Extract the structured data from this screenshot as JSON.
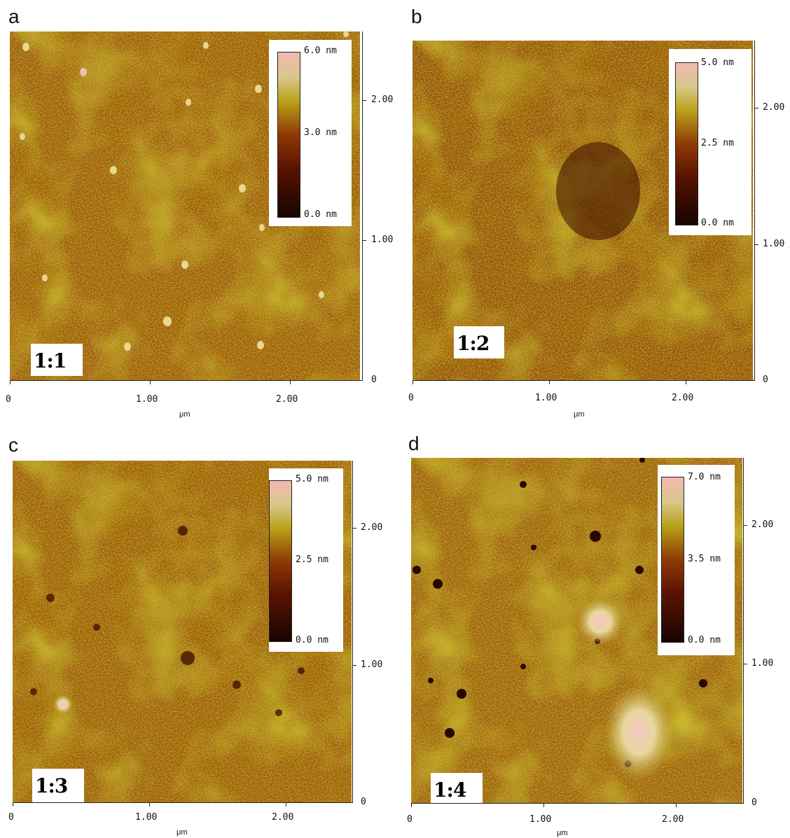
{
  "colors": {
    "low": "#1c0600",
    "mid": "#8a2e00",
    "olive": "#a89614",
    "high": "#f0b8b0"
  },
  "panels": [
    {
      "letter": "a",
      "sample": "1:1",
      "scale_max": "6.0 nm",
      "scale_mid": "3.0 nm",
      "scale_min": "0.0 nm",
      "x_ticks": [
        "0",
        "1.00",
        "2.00"
      ],
      "y_ticks": [
        "2.00",
        "1.00",
        "0"
      ],
      "x_unit": "μm"
    },
    {
      "letter": "b",
      "sample": "1:2",
      "scale_max": "5.0 nm",
      "scale_mid": "2.5 nm",
      "scale_min": "0.0 nm",
      "x_ticks": [
        "0",
        "1.00",
        "2.00"
      ],
      "y_ticks": [
        "2.00",
        "1.00",
        "0"
      ],
      "x_unit": "μm"
    },
    {
      "letter": "c",
      "sample": "1:3",
      "scale_max": "5.0 nm",
      "scale_mid": "2.5 nm",
      "scale_min": "0.0 nm",
      "x_ticks": [
        "0",
        "1.00",
        "2.00"
      ],
      "y_ticks": [
        "2.00",
        "1.00",
        "0"
      ],
      "x_unit": "μm"
    },
    {
      "letter": "d",
      "sample": "1:4",
      "scale_max": "7.0 nm",
      "scale_mid": "3.5 nm",
      "scale_min": "0.0 nm",
      "x_ticks": [
        "0",
        "1.00",
        "2.00"
      ],
      "y_ticks": [
        "2.00",
        "1.00",
        "0"
      ],
      "x_unit": "μm"
    }
  ]
}
